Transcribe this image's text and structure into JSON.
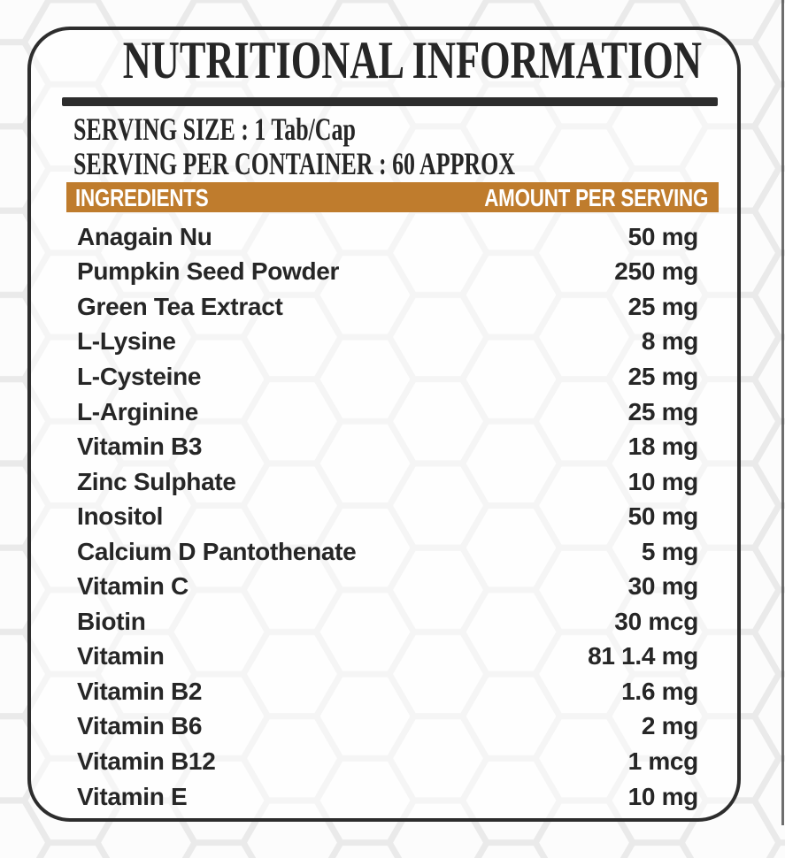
{
  "label": {
    "title": "NUTRITIONAL INFORMATION",
    "serving_size": "SERVING SIZE : 1 Tab/Cap",
    "serving_per_container": "SERVING PER CONTAINER : 60 APPROX",
    "table": {
      "header": {
        "ingredients": "INGREDIENTS",
        "amount_per_serving": "AMOUNT PER SERVING"
      },
      "rows": [
        {
          "name": "Anagain Nu",
          "amount": "50 mg"
        },
        {
          "name": "Pumpkin Seed Powder",
          "amount": "250 mg"
        },
        {
          "name": "Green Tea Extract",
          "amount": "25 mg"
        },
        {
          "name": "L-Lysine",
          "amount": "8 mg"
        },
        {
          "name": "L-Cysteine",
          "amount": "25 mg"
        },
        {
          "name": "L-Arginine",
          "amount": "25 mg"
        },
        {
          "name": "Vitamin B3",
          "amount": "18 mg"
        },
        {
          "name": "Zinc Sulphate",
          "amount": "10 mg"
        },
        {
          "name": "Inositol",
          "amount": "50 mg"
        },
        {
          "name": "Calcium D Pantothenate",
          "amount": "5 mg"
        },
        {
          "name": "Vitamin C",
          "amount": "30 mg"
        },
        {
          "name": "Biotin",
          "amount": "30 mcg"
        },
        {
          "name": "Vitamin",
          "amount": "81 1.4 mg"
        },
        {
          "name": "Vitamin B2",
          "amount": "1.6 mg"
        },
        {
          "name": "Vitamin B6",
          "amount": "2 mg"
        },
        {
          "name": "Vitamin B12",
          "amount": "1 mcg"
        },
        {
          "name": "Vitamin E",
          "amount": "10 mg"
        }
      ]
    }
  },
  "colors": {
    "header_bar": "#bf7c2d",
    "header_text": "#ffffff",
    "body_text": "#262626",
    "panel_border": "#2d2d2d",
    "hex_line": "#eaeaea"
  }
}
